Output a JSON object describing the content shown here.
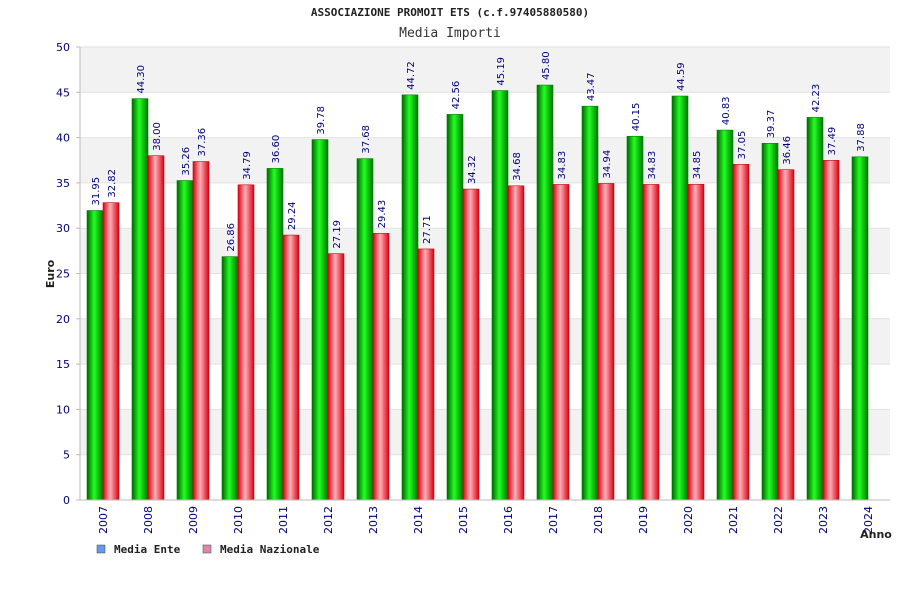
{
  "chart_data": {
    "type": "bar",
    "title": "ASSOCIAZIONE PROMOIT ETS (c.f.97405880580)",
    "subtitle": "Media Importi",
    "xlabel": "Anno",
    "ylabel": "Euro",
    "ylim": [
      0,
      50
    ],
    "yticks": [
      "0",
      "5",
      "10",
      "15",
      "20",
      "25",
      "30",
      "35",
      "40",
      "45",
      "50"
    ],
    "grid": true,
    "legend_position": "bottom-left",
    "categories": [
      "2007",
      "2008",
      "2009",
      "2010",
      "2011",
      "2012",
      "2013",
      "2014",
      "2015",
      "2016",
      "2017",
      "2018",
      "2019",
      "2020",
      "2021",
      "2022",
      "2023",
      "2024"
    ],
    "series": [
      {
        "name": "Media Ente",
        "legend_color": "#6699ee",
        "bar_color": "#00c000",
        "values": [
          31.95,
          44.3,
          35.26,
          26.86,
          36.6,
          39.78,
          37.68,
          44.72,
          42.56,
          45.19,
          45.8,
          43.47,
          40.15,
          44.59,
          40.83,
          39.37,
          42.23,
          37.88
        ],
        "labels": [
          "31.95",
          "44.30",
          "35.26",
          "26.86",
          "36.60",
          "39.78",
          "37.68",
          "44.72",
          "42.56",
          "45.19",
          "45.80",
          "43.47",
          "40.15",
          "44.59",
          "40.83",
          "39.37",
          "42.23",
          "37.88"
        ]
      },
      {
        "name": "Media Nazionale",
        "legend_color": "#dd88aa",
        "bar_color": "#e8202a",
        "values": [
          32.82,
          38.0,
          37.36,
          34.79,
          29.24,
          27.19,
          29.43,
          27.71,
          34.32,
          34.68,
          34.83,
          34.94,
          34.83,
          34.85,
          37.05,
          36.46,
          37.49,
          null
        ],
        "labels": [
          "32.82",
          "38.00",
          "37.36",
          "34.79",
          "29.24",
          "27.19",
          "29.43",
          "27.71",
          "34.32",
          "34.68",
          "34.83",
          "34.94",
          "34.83",
          "34.85",
          "37.05",
          "36.46",
          "37.49",
          null
        ]
      }
    ]
  }
}
